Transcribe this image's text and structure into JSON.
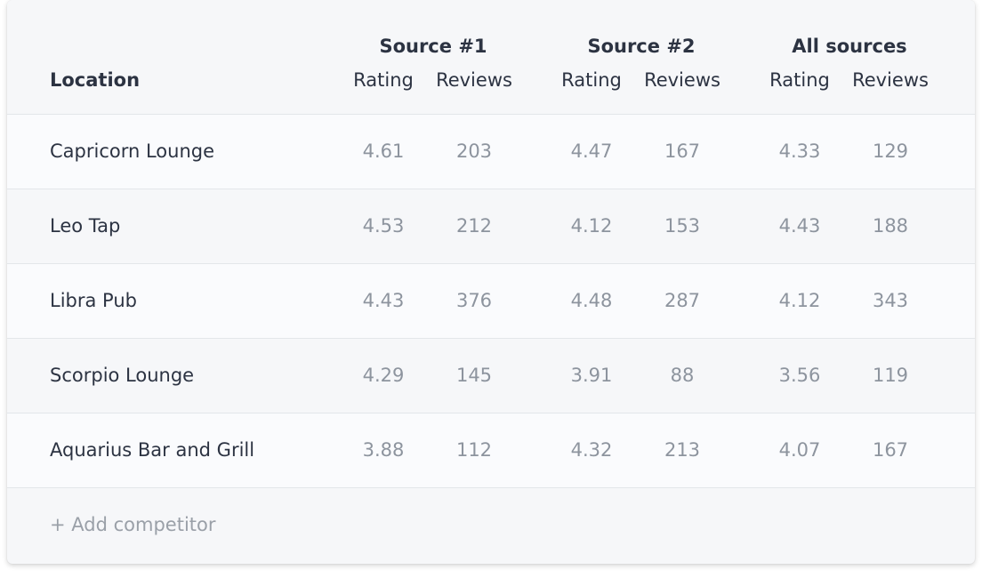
{
  "header": {
    "location_label": "Location",
    "groups": [
      "Source #1",
      "Source #2",
      "All sources"
    ],
    "rating_label": "Rating",
    "reviews_label": "Reviews"
  },
  "rows": [
    {
      "name": "Capricorn Lounge",
      "s1_rating": "4.61",
      "s1_reviews": "203",
      "s2_rating": "4.47",
      "s2_reviews": "167",
      "all_rating": "4.33",
      "all_reviews": "129"
    },
    {
      "name": "Leo Tap",
      "s1_rating": "4.53",
      "s1_reviews": "212",
      "s2_rating": "4.12",
      "s2_reviews": "153",
      "all_rating": "4.43",
      "all_reviews": "188"
    },
    {
      "name": "Libra Pub",
      "s1_rating": "4.43",
      "s1_reviews": "376",
      "s2_rating": "4.48",
      "s2_reviews": "287",
      "all_rating": "4.12",
      "all_reviews": "343"
    },
    {
      "name": "Scorpio Lounge",
      "s1_rating": "4.29",
      "s1_reviews": "145",
      "s2_rating": "3.91",
      "s2_reviews": "88",
      "all_rating": "3.56",
      "all_reviews": "119"
    },
    {
      "name": "Aquarius Bar and Grill",
      "s1_rating": "3.88",
      "s1_reviews": "112",
      "s2_rating": "4.32",
      "s2_reviews": "213",
      "all_rating": "4.07",
      "all_reviews": "167"
    }
  ],
  "footer": {
    "add_label": "+ Add competitor"
  },
  "colors": {
    "text_dark": "#2c3342",
    "text_muted": "#8d949e",
    "divider": "#e3e6ea",
    "background": "#f6f7f9"
  }
}
